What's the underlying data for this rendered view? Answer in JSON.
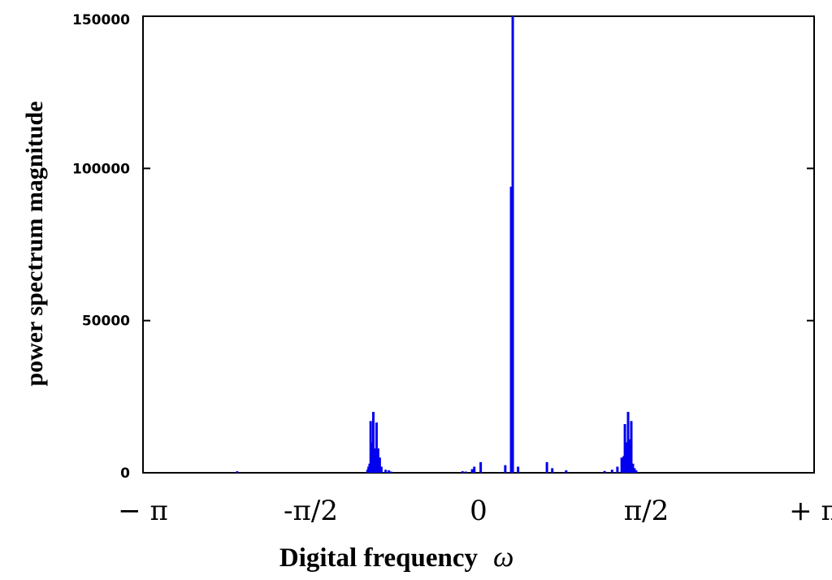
{
  "chart_data": {
    "type": "bar",
    "title": "",
    "xlabel": "Digital frequency",
    "xlabel_symbol": "ω",
    "ylabel": "power spectrum magnitude",
    "xlim": [
      -3.1416,
      3.1416
    ],
    "ylim": [
      0,
      150000
    ],
    "yticks": [
      {
        "value": 0,
        "label": "0"
      },
      {
        "value": 50000,
        "label": "50000"
      },
      {
        "value": 100000,
        "label": "100000"
      },
      {
        "value": 150000,
        "label": "150000"
      }
    ],
    "xticks": [
      {
        "value": -3.1416,
        "label": "− π"
      },
      {
        "value": -1.5708,
        "label": "-π/2"
      },
      {
        "value": 0,
        "label": "0"
      },
      {
        "value": 1.5708,
        "label": "π/2"
      },
      {
        "value": 3.1416,
        "label": "+ π"
      }
    ],
    "grid": false,
    "legend": "none",
    "bar_color": "#0000ee",
    "points": [
      {
        "x": -2.26,
        "y": 500
      },
      {
        "x": -1.04,
        "y": 1000
      },
      {
        "x": -1.03,
        "y": 2000
      },
      {
        "x": -1.02,
        "y": 3000
      },
      {
        "x": -1.01,
        "y": 17000
      },
      {
        "x": -1.0,
        "y": 10000
      },
      {
        "x": -0.985,
        "y": 20000
      },
      {
        "x": -0.97,
        "y": 8000
      },
      {
        "x": -0.955,
        "y": 16500
      },
      {
        "x": -0.94,
        "y": 8000
      },
      {
        "x": -0.925,
        "y": 5000
      },
      {
        "x": -0.91,
        "y": 2000
      },
      {
        "x": -0.87,
        "y": 1000
      },
      {
        "x": -0.84,
        "y": 800
      },
      {
        "x": -0.82,
        "y": 400
      },
      {
        "x": -0.15,
        "y": 500
      },
      {
        "x": -0.12,
        "y": 400
      },
      {
        "x": -0.06,
        "y": 1200
      },
      {
        "x": -0.04,
        "y": 2000
      },
      {
        "x": 0.02,
        "y": 3500
      },
      {
        "x": 0.25,
        "y": 2500
      },
      {
        "x": 0.305,
        "y": 94000
      },
      {
        "x": 0.32,
        "y": 150000
      },
      {
        "x": 0.37,
        "y": 2000
      },
      {
        "x": 0.64,
        "y": 3500
      },
      {
        "x": 0.69,
        "y": 1500
      },
      {
        "x": 0.82,
        "y": 800
      },
      {
        "x": 1.18,
        "y": 600
      },
      {
        "x": 1.25,
        "y": 1000
      },
      {
        "x": 1.3,
        "y": 2000
      },
      {
        "x": 1.34,
        "y": 5000
      },
      {
        "x": 1.36,
        "y": 5500
      },
      {
        "x": 1.37,
        "y": 16000
      },
      {
        "x": 1.385,
        "y": 10000
      },
      {
        "x": 1.4,
        "y": 20000
      },
      {
        "x": 1.415,
        "y": 11000
      },
      {
        "x": 1.43,
        "y": 17000
      },
      {
        "x": 1.445,
        "y": 3000
      },
      {
        "x": 1.46,
        "y": 1500
      },
      {
        "x": 1.475,
        "y": 800
      }
    ]
  }
}
